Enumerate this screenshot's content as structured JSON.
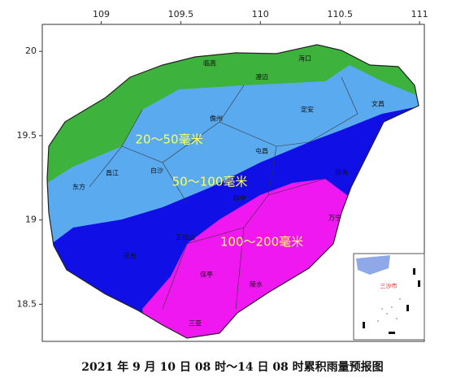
{
  "map": {
    "xlim": [
      108.63,
      111.03
    ],
    "ylim": [
      18.28,
      20.16
    ],
    "xticks": [
      109,
      109.5,
      110,
      110.5,
      111
    ],
    "yticks": [
      20,
      19.5,
      19,
      18.5
    ],
    "zones": [
      "20～50毫米",
      "50～100毫米",
      "100～200毫米"
    ],
    "cities": [
      "临高",
      "海口",
      "澄迈",
      "文昌",
      "定安",
      "儋州",
      "屯昌",
      "琼海",
      "昌江",
      "白沙",
      "东方",
      "琼中",
      "万宁",
      "五指山",
      "乐东",
      "保亭",
      "陵水",
      "三亚"
    ],
    "inset": "三沙市",
    "caption": "2021 年 9 月 10 日 08 时～14 日 08 时累积雨量预报图"
  }
}
